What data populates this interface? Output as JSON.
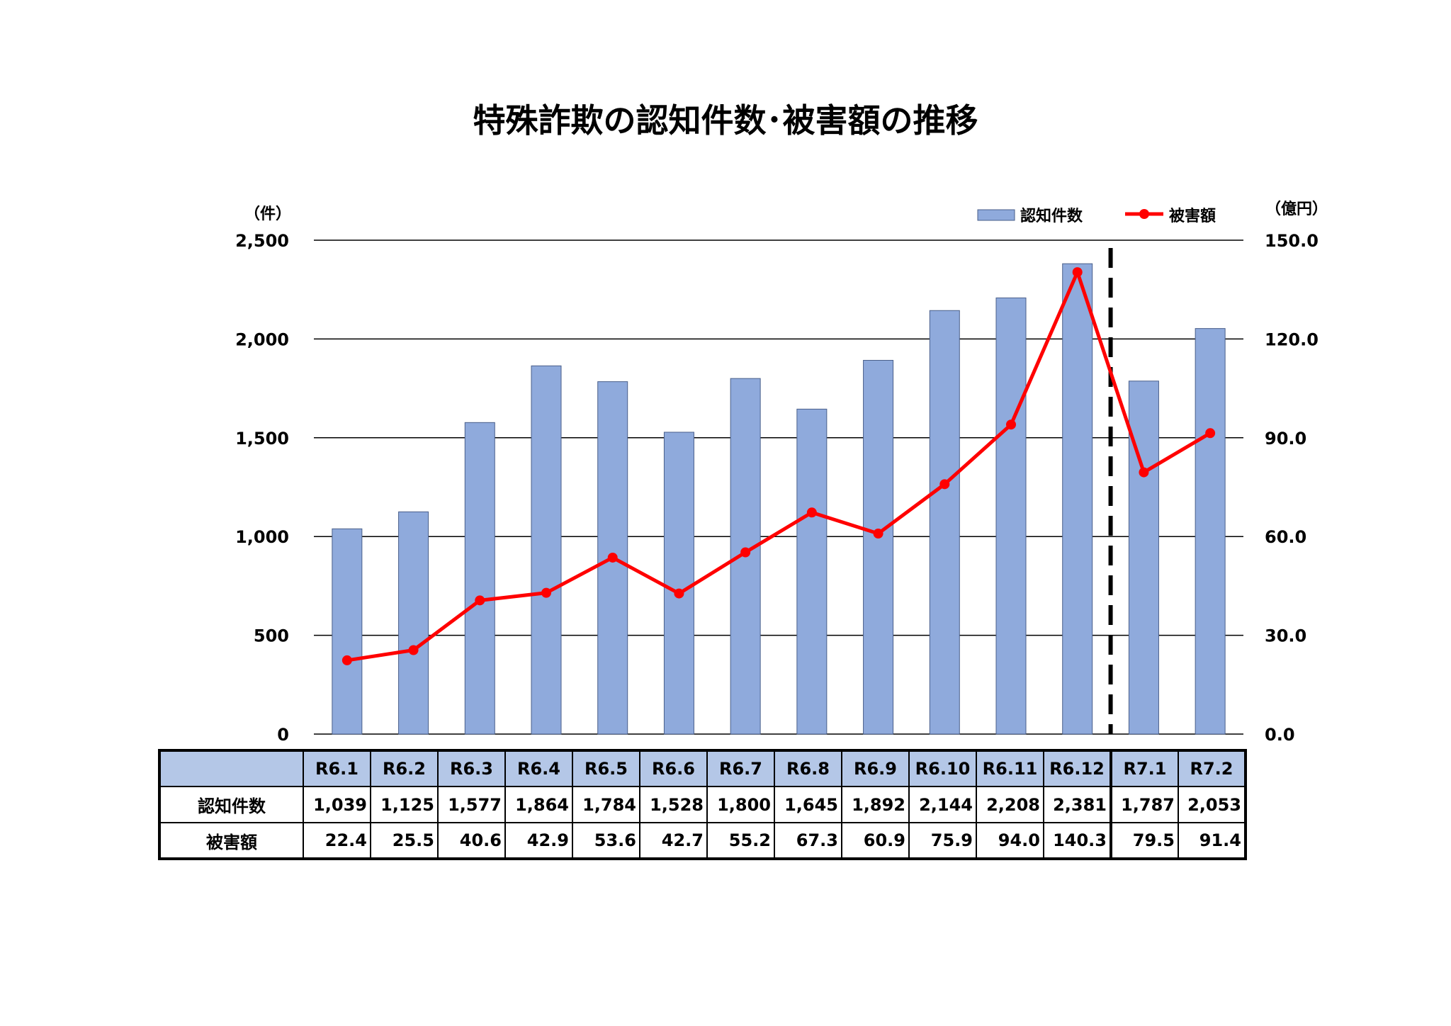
{
  "chart_data": {
    "type": "bar",
    "title": "特殊詐欺の認知件数･被害額の推移",
    "categories": [
      "R6.1",
      "R6.2",
      "R6.3",
      "R6.4",
      "R6.5",
      "R6.6",
      "R6.7",
      "R6.8",
      "R6.9",
      "R6.10",
      "R6.11",
      "R6.12",
      "R7.1",
      "R7.2"
    ],
    "left_axis": {
      "unit": "（件）",
      "ylim": [
        0,
        2500
      ],
      "ticks": [
        "0",
        "500",
        "1,000",
        "1,500",
        "2,000",
        "2,500"
      ]
    },
    "right_axis": {
      "unit": "（億円）",
      "ylim": [
        0,
        150
      ],
      "ticks": [
        "0.0",
        "30.0",
        "60.0",
        "90.0",
        "120.0",
        "150.0"
      ]
    },
    "series": [
      {
        "name": "認知件数",
        "type": "bar",
        "axis": "left",
        "color": "#8faadc",
        "values": [
          1039,
          1125,
          1577,
          1864,
          1784,
          1528,
          1800,
          1645,
          1892,
          2144,
          2208,
          2381,
          1787,
          2053
        ],
        "labels": [
          "1,039",
          "1,125",
          "1,577",
          "1,864",
          "1,784",
          "1,528",
          "1,800",
          "1,645",
          "1,892",
          "2,144",
          "2,208",
          "2,381",
          "1,787",
          "2,053"
        ]
      },
      {
        "name": "被害額",
        "type": "line",
        "axis": "right",
        "color": "#ff0000",
        "values": [
          22.4,
          25.5,
          40.6,
          42.9,
          53.6,
          42.7,
          55.2,
          67.3,
          60.9,
          75.9,
          94.0,
          140.3,
          79.5,
          91.4
        ],
        "labels": [
          "22.4",
          "25.5",
          "40.6",
          "42.9",
          "53.6",
          "42.7",
          "55.2",
          "67.3",
          "60.9",
          "75.9",
          "94.0",
          "140.3",
          "79.5",
          "91.4"
        ]
      }
    ],
    "divider_after_category": "R6.12",
    "grid": true,
    "legend": "top-right"
  }
}
